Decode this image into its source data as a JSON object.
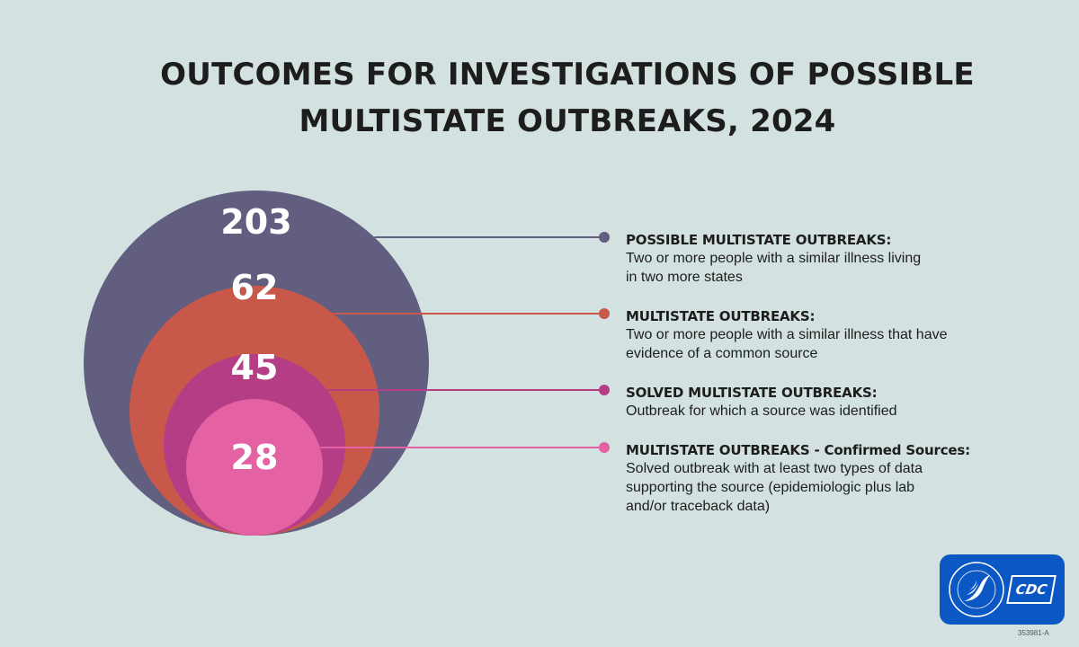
{
  "title": {
    "line1": "OUTCOMES FOR INVESTIGATIONS OF POSSIBLE",
    "line2": "MULTISTATE OUTBREAKS, 2024"
  },
  "chart_data": {
    "type": "nested-circles",
    "categories": [
      "POSSIBLE MULTISTATE OUTBREAKS:",
      "MULTISTATE OUTBREAKS:",
      "SOLVED MULTISTATE OUTBREAKS:",
      "MULTISTATE OUTBREAKS - Confirmed Sources:"
    ],
    "values": [
      203,
      62,
      45,
      28
    ],
    "value_labels": [
      "203",
      "62",
      "45",
      "28"
    ],
    "colors": [
      "#615e7f",
      "#c8584a",
      "#b53d85",
      "#e462a3"
    ]
  },
  "legend": [
    {
      "heading": "POSSIBLE MULTISTATE OUTBREAKS:",
      "desc1": "Two or more people with a similar illness living",
      "desc2": "in two more states",
      "desc3": ""
    },
    {
      "heading": "MULTISTATE OUTBREAKS:",
      "desc1": "Two or more people with a similar illness that have",
      "desc2": "evidence of a common source",
      "desc3": ""
    },
    {
      "heading": "SOLVED MULTISTATE OUTBREAKS:",
      "desc1": "Outbreak for which a source was identified",
      "desc2": "",
      "desc3": ""
    },
    {
      "heading": "MULTISTATE OUTBREAKS - Confirmed Sources:",
      "desc1": "Solved outbreak with at least two types of data",
      "desc2": "supporting the source (epidemiologic plus lab",
      "desc3": "and/or traceback data)"
    }
  ],
  "logo": {
    "agency": "CDC",
    "seal_icon": "hhs-eagle-seal-icon",
    "seal_text": "DEPARTMENT OF HEALTH & HUMAN SERVICES USA"
  },
  "ref_code": "353981-A"
}
